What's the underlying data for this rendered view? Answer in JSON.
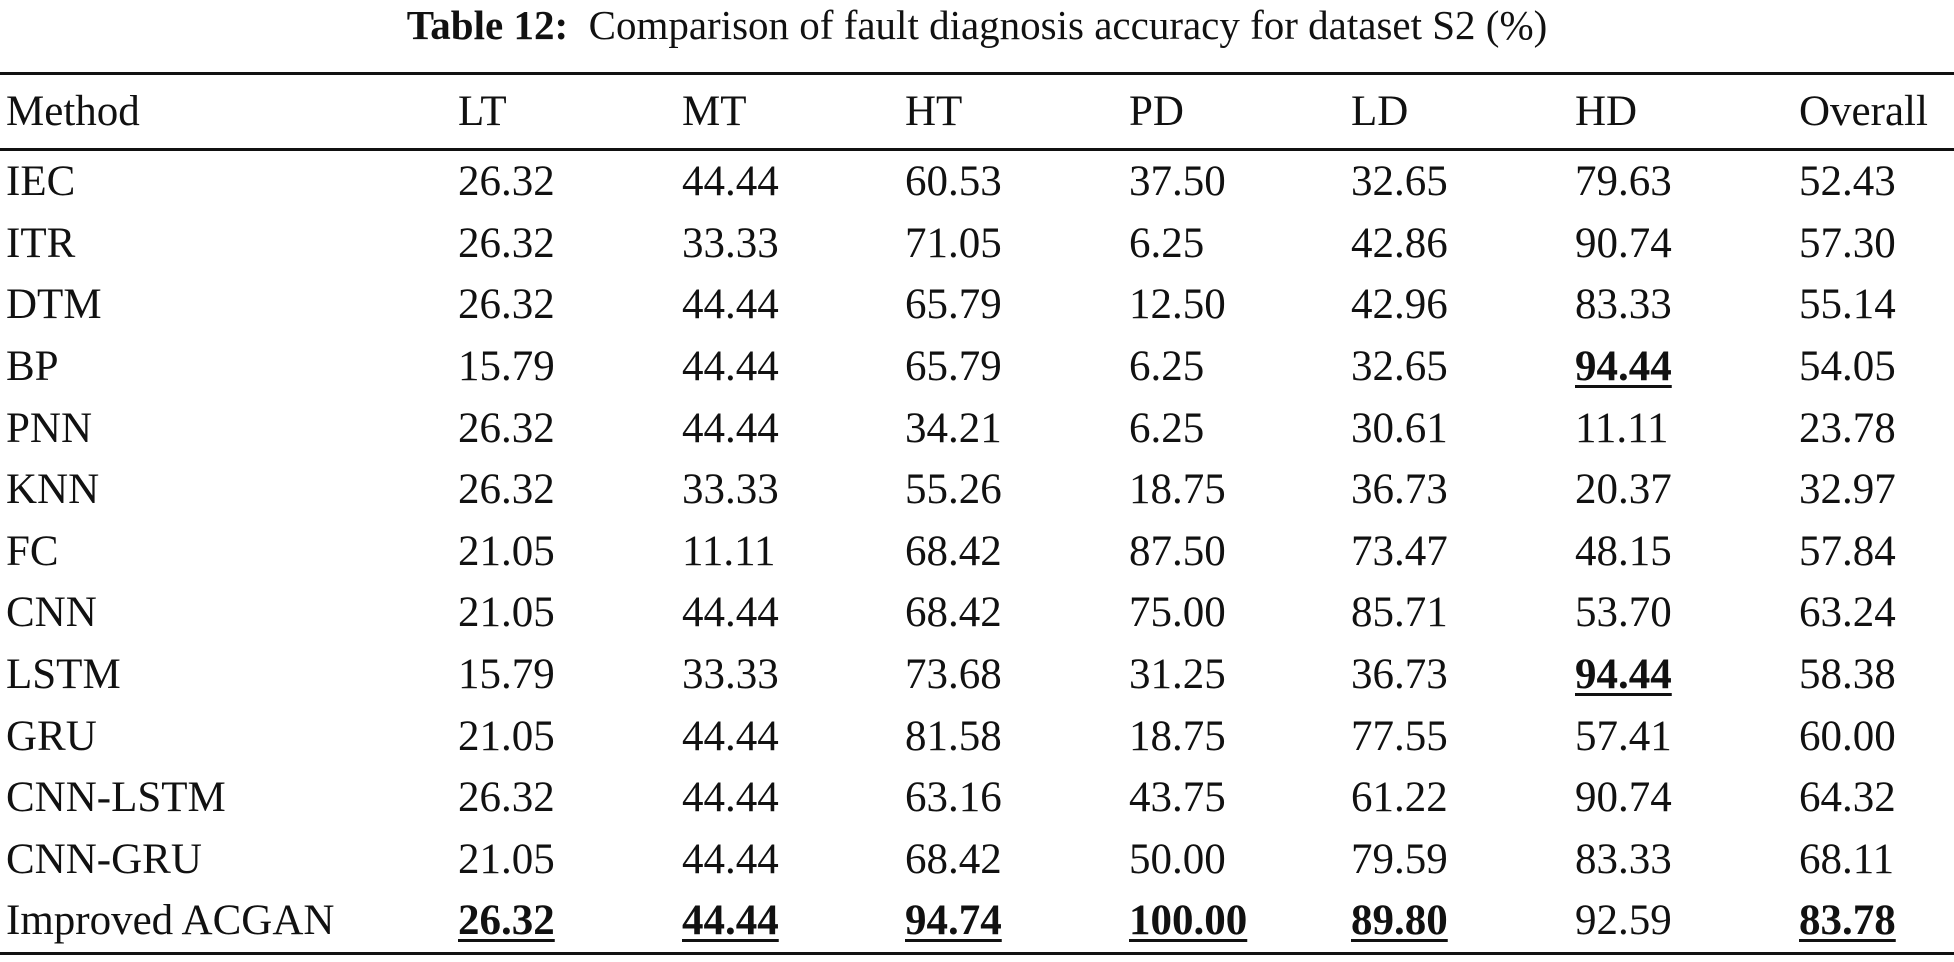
{
  "caption": {
    "label": "Table 12:",
    "text": "Comparison of fault diagnosis accuracy for dataset S2 (%)"
  },
  "table": {
    "columns": [
      "Method",
      "LT",
      "MT",
      "HT",
      "PD",
      "LD",
      "HD",
      "Overall"
    ],
    "rows": [
      {
        "cells": [
          "IEC",
          "26.32",
          "44.44",
          "60.53",
          "37.50",
          "32.65",
          "79.63",
          "52.43"
        ],
        "best": []
      },
      {
        "cells": [
          "ITR",
          "26.32",
          "33.33",
          "71.05",
          "6.25",
          "42.86",
          "90.74",
          "57.30"
        ],
        "best": []
      },
      {
        "cells": [
          "DTM",
          "26.32",
          "44.44",
          "65.79",
          "12.50",
          "42.96",
          "83.33",
          "55.14"
        ],
        "best": []
      },
      {
        "cells": [
          "BP",
          "15.79",
          "44.44",
          "65.79",
          "6.25",
          "32.65",
          "94.44",
          "54.05"
        ],
        "best": [
          6
        ]
      },
      {
        "cells": [
          "PNN",
          "26.32",
          "44.44",
          "34.21",
          "6.25",
          "30.61",
          "11.11",
          "23.78"
        ],
        "best": []
      },
      {
        "cells": [
          "KNN",
          "26.32",
          "33.33",
          "55.26",
          "18.75",
          "36.73",
          "20.37",
          "32.97"
        ],
        "best": []
      },
      {
        "cells": [
          "FC",
          "21.05",
          "11.11",
          "68.42",
          "87.50",
          "73.47",
          "48.15",
          "57.84"
        ],
        "best": []
      },
      {
        "cells": [
          "CNN",
          "21.05",
          "44.44",
          "68.42",
          "75.00",
          "85.71",
          "53.70",
          "63.24"
        ],
        "best": []
      },
      {
        "cells": [
          "LSTM",
          "15.79",
          "33.33",
          "73.68",
          "31.25",
          "36.73",
          "94.44",
          "58.38"
        ],
        "best": [
          6
        ]
      },
      {
        "cells": [
          "GRU",
          "21.05",
          "44.44",
          "81.58",
          "18.75",
          "77.55",
          "57.41",
          "60.00"
        ],
        "best": []
      },
      {
        "cells": [
          "CNN-LSTM",
          "26.32",
          "44.44",
          "63.16",
          "43.75",
          "61.22",
          "90.74",
          "64.32"
        ],
        "best": []
      },
      {
        "cells": [
          "CNN-GRU",
          "21.05",
          "44.44",
          "68.42",
          "50.00",
          "79.59",
          "83.33",
          "68.11"
        ],
        "best": []
      },
      {
        "cells": [
          "Improved ACGAN",
          "26.32",
          "44.44",
          "94.74",
          "100.00",
          "89.80",
          "92.59",
          "83.78"
        ],
        "best": [
          1,
          2,
          3,
          4,
          5,
          7
        ]
      }
    ]
  }
}
